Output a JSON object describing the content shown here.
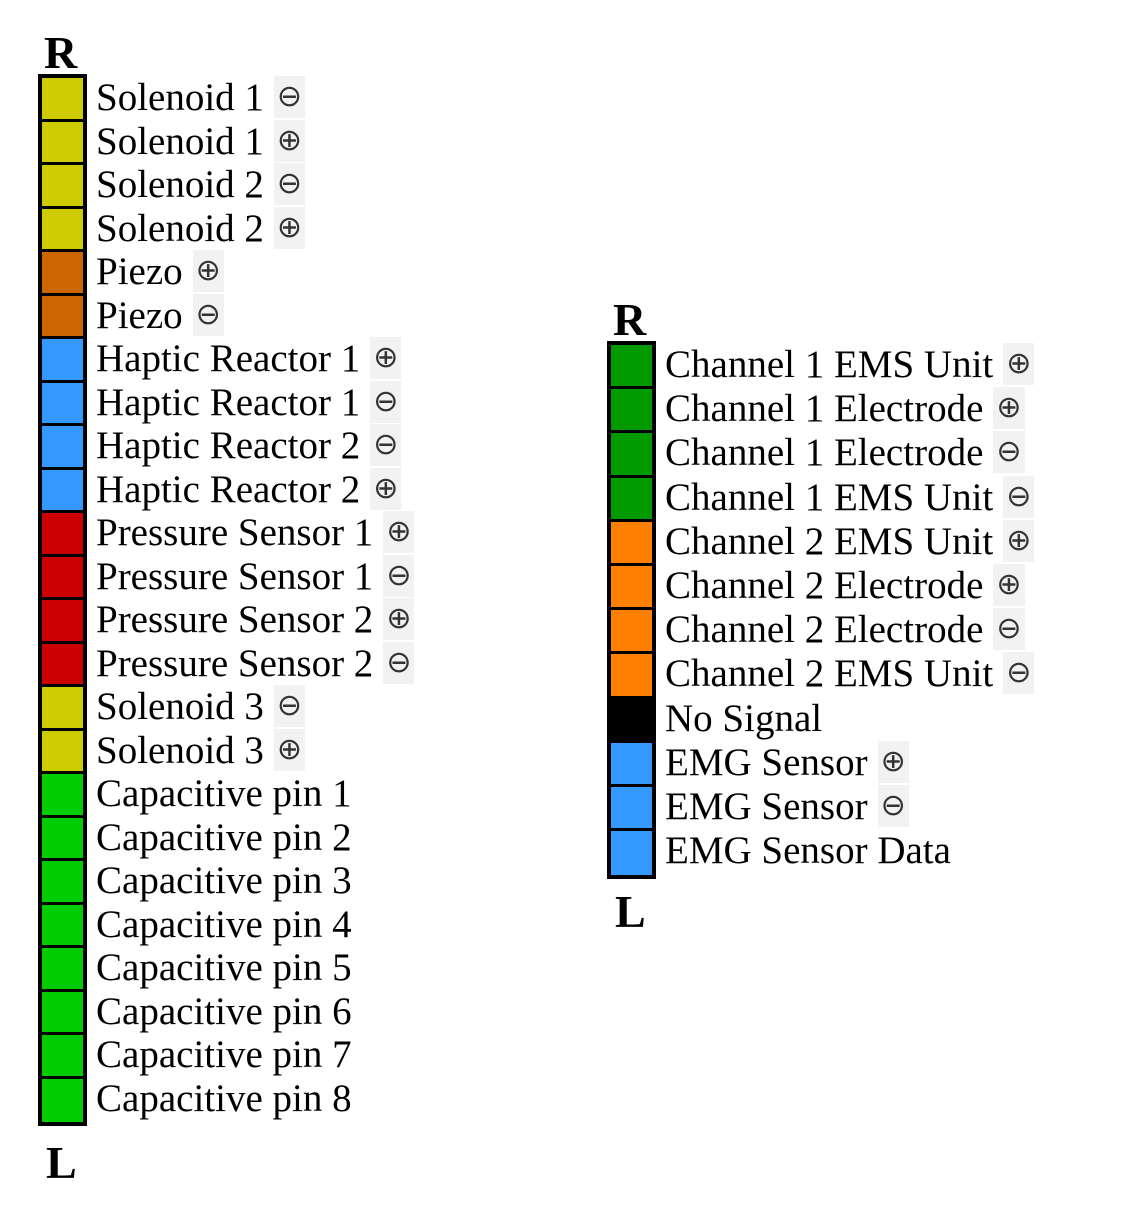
{
  "connectors": [
    {
      "id": "left",
      "top_label": "R",
      "bottom_label": "L",
      "pins": [
        {
          "label": "Solenoid 1",
          "polarity": "⊖",
          "color": "#cccc00"
        },
        {
          "label": "Solenoid 1",
          "polarity": "⊕",
          "color": "#cccc00"
        },
        {
          "label": "Solenoid 2",
          "polarity": "⊖",
          "color": "#cccc00"
        },
        {
          "label": "Solenoid 2",
          "polarity": "⊕",
          "color": "#cccc00"
        },
        {
          "label": "Piezo",
          "polarity": "⊕",
          "color": "#cc6600"
        },
        {
          "label": "Piezo",
          "polarity": "⊖",
          "color": "#cc6600"
        },
        {
          "label": "Haptic Reactor 1",
          "polarity": "⊕",
          "color": "#3399ff"
        },
        {
          "label": "Haptic Reactor 1",
          "polarity": "⊖",
          "color": "#3399ff"
        },
        {
          "label": "Haptic Reactor 2",
          "polarity": "⊖",
          "color": "#3399ff"
        },
        {
          "label": "Haptic Reactor 2",
          "polarity": "⊕",
          "color": "#3399ff"
        },
        {
          "label": "Pressure Sensor 1",
          "polarity": "⊕",
          "color": "#cc0000"
        },
        {
          "label": "Pressure Sensor 1",
          "polarity": "⊖",
          "color": "#cc0000"
        },
        {
          "label": "Pressure Sensor 2",
          "polarity": "⊕",
          "color": "#cc0000"
        },
        {
          "label": "Pressure Sensor 2",
          "polarity": "⊖",
          "color": "#cc0000"
        },
        {
          "label": "Solenoid 3",
          "polarity": "⊖",
          "color": "#cccc00"
        },
        {
          "label": "Solenoid 3",
          "polarity": "⊕",
          "color": "#cccc00"
        },
        {
          "label": "Capacitive pin 1",
          "polarity": "",
          "color": "#00cc00"
        },
        {
          "label": "Capacitive pin 2",
          "polarity": "",
          "color": "#00cc00"
        },
        {
          "label": "Capacitive pin 3",
          "polarity": "",
          "color": "#00cc00"
        },
        {
          "label": "Capacitive pin 4",
          "polarity": "",
          "color": "#00cc00"
        },
        {
          "label": "Capacitive pin 5",
          "polarity": "",
          "color": "#00cc00"
        },
        {
          "label": "Capacitive pin 6",
          "polarity": "",
          "color": "#00cc00"
        },
        {
          "label": "Capacitive pin 7",
          "polarity": "",
          "color": "#00cc00"
        },
        {
          "label": "Capacitive pin 8",
          "polarity": "",
          "color": "#00cc00"
        }
      ]
    },
    {
      "id": "right",
      "top_label": "R",
      "bottom_label": "L",
      "pins": [
        {
          "label": "Channel 1 EMS Unit",
          "polarity": "⊕",
          "color": "#009900"
        },
        {
          "label": "Channel 1 Electrode",
          "polarity": "⊕",
          "color": "#009900"
        },
        {
          "label": "Channel 1 Electrode",
          "polarity": "⊖",
          "color": "#009900"
        },
        {
          "label": "Channel 1 EMS Unit",
          "polarity": "⊖",
          "color": "#009900"
        },
        {
          "label": "Channel 2 EMS Unit",
          "polarity": "⊕",
          "color": "#ff8000"
        },
        {
          "label": "Channel 2 Electrode",
          "polarity": "⊕",
          "color": "#ff8000"
        },
        {
          "label": "Channel 2 Electrode",
          "polarity": "⊖",
          "color": "#ff8000"
        },
        {
          "label": "Channel 2 EMS Unit",
          "polarity": "⊖",
          "color": "#ff8000"
        },
        {
          "label": "No Signal",
          "polarity": "",
          "color": "#000000"
        },
        {
          "label": "EMG Sensor",
          "polarity": "⊕",
          "color": "#3399ff"
        },
        {
          "label": "EMG Sensor",
          "polarity": "⊖",
          "color": "#3399ff"
        },
        {
          "label": "EMG Sensor Data",
          "polarity": "",
          "color": "#3399ff"
        }
      ]
    }
  ]
}
